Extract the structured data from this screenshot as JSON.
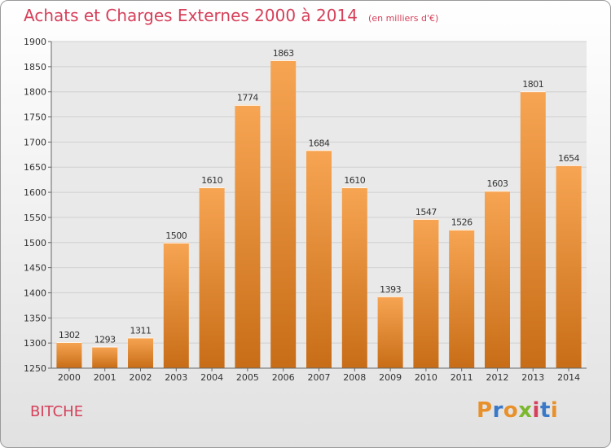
{
  "header": {
    "title": "Achats et Charges Externes 2000 à 2014",
    "subtitle": "(en milliers d'€)"
  },
  "commune": "BITCHE",
  "brand": {
    "letters": [
      "P",
      "r",
      "o",
      "x",
      "i",
      "t",
      "i"
    ],
    "colors": [
      "#e8902a",
      "#3a78c8",
      "#e8902a",
      "#7cb82f",
      "#d6405a",
      "#3a78c8",
      "#e8902a"
    ]
  },
  "colors": {
    "accent": "#d6405a",
    "bar_top": "#f7a553",
    "bar_bottom": "#c86d17",
    "grid": "#d0d0d0",
    "plot_bg": "#e9e9e9"
  },
  "chart_data": {
    "type": "bar",
    "categories": [
      "2000",
      "2001",
      "2002",
      "2003",
      "2004",
      "2005",
      "2006",
      "2007",
      "2008",
      "2009",
      "2010",
      "2011",
      "2012",
      "2013",
      "2014"
    ],
    "values": [
      1302,
      1293,
      1311,
      1500,
      1610,
      1774,
      1863,
      1684,
      1610,
      1393,
      1547,
      1526,
      1603,
      1801,
      1654
    ],
    "ylim": [
      1250,
      1900
    ],
    "yticks": [
      "1250",
      "1300",
      "1350",
      "1400",
      "1450",
      "1500",
      "1550",
      "1600",
      "1650",
      "1700",
      "1750",
      "1800",
      "1850",
      "1900"
    ],
    "grid": true,
    "data_labels": true
  }
}
